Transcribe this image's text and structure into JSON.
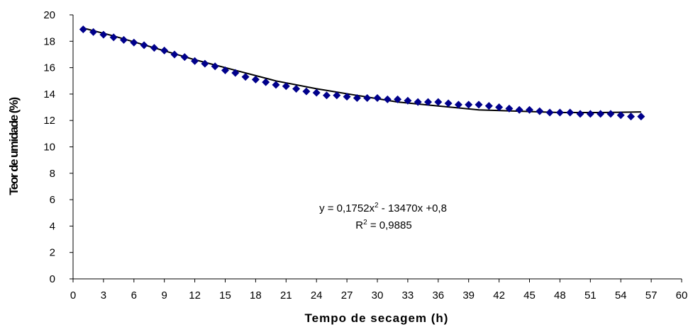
{
  "chart_data": {
    "type": "scatter",
    "xlabel": "Tempo de secagem (h)",
    "ylabel": "Teor de umidade (%)",
    "xlim": [
      0,
      60
    ],
    "ylim": [
      0,
      20
    ],
    "xticks": [
      "0",
      "3",
      "6",
      "9",
      "12",
      "15",
      "18",
      "21",
      "24",
      "27",
      "30",
      "33",
      "36",
      "39",
      "42",
      "45",
      "48",
      "51",
      "54",
      "57",
      "60"
    ],
    "yticks": [
      "0",
      "2",
      "4",
      "6",
      "8",
      "10",
      "12",
      "14",
      "16",
      "18",
      "20"
    ],
    "grid": false,
    "legend": "none",
    "colors": {
      "points": "#00008B",
      "trendline": "#000000"
    },
    "series": [
      {
        "x": [
          1,
          2,
          3,
          4,
          5,
          6,
          7,
          8,
          9,
          10,
          11,
          12,
          13,
          14,
          15,
          16,
          17,
          18,
          19,
          20,
          21,
          22,
          23,
          24,
          25,
          26,
          27,
          28,
          29,
          30,
          31,
          32,
          33,
          34,
          35,
          36,
          37,
          38,
          39,
          40,
          41,
          42,
          43,
          44,
          45,
          46,
          47,
          48,
          49,
          50,
          51,
          52,
          53,
          54,
          55,
          56
        ],
        "y": [
          18.9,
          18.7,
          18.5,
          18.3,
          18.1,
          17.9,
          17.7,
          17.5,
          17.3,
          17.0,
          16.8,
          16.5,
          16.3,
          16.1,
          15.8,
          15.6,
          15.3,
          15.1,
          14.9,
          14.7,
          14.6,
          14.4,
          14.2,
          14.1,
          13.9,
          13.9,
          13.8,
          13.7,
          13.7,
          13.7,
          13.6,
          13.6,
          13.5,
          13.4,
          13.4,
          13.4,
          13.3,
          13.2,
          13.2,
          13.2,
          13.1,
          13.0,
          12.9,
          12.8,
          12.8,
          12.7,
          12.6,
          12.6,
          12.6,
          12.5,
          12.5,
          12.5,
          12.5,
          12.4,
          12.3,
          12.3
        ]
      }
    ],
    "trendline": {
      "x": [
        1,
        4,
        8,
        12,
        16,
        20,
        24,
        28,
        32,
        36,
        40,
        44,
        48,
        52,
        56
      ],
      "y": [
        19.0,
        18.4,
        17.5,
        16.6,
        15.8,
        15.0,
        14.4,
        13.9,
        13.4,
        13.1,
        12.8,
        12.7,
        12.6,
        12.6,
        12.65
      ]
    },
    "annotations": [
      {
        "prefix": "y = 0,1752x",
        "sup": "2",
        "suffix": " - 13470x +0,8"
      },
      {
        "prefix": "R",
        "sup": "2",
        "suffix": " = 0,9885"
      }
    ]
  }
}
